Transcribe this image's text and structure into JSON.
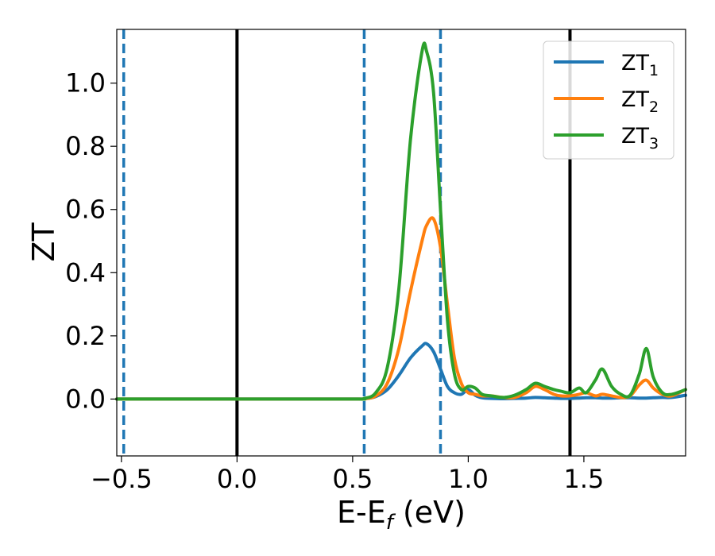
{
  "chart_data": {
    "type": "line",
    "xlabel": "E-E",
    "xlabel_sub": "f",
    "xlabel_unit": " (eV)",
    "ylabel": "ZT",
    "xlim": [
      -0.52,
      1.94
    ],
    "ylim": [
      -0.18,
      1.17
    ],
    "x_ticks": [
      -0.5,
      0.0,
      0.5,
      1.0,
      1.5
    ],
    "x_tick_labels": [
      "−0.5",
      "0.0",
      "0.5",
      "1.0",
      "1.5"
    ],
    "y_ticks": [
      0.0,
      0.2,
      0.4,
      0.6,
      0.8,
      1.0
    ],
    "y_tick_labels": [
      "0.0",
      "0.2",
      "0.4",
      "0.6",
      "0.8",
      "1.0"
    ],
    "grid": false,
    "legend_position": "top-right",
    "vlines": [
      {
        "x": 0.0,
        "style": "solid",
        "color": "#000000"
      },
      {
        "x": 1.44,
        "style": "solid",
        "color": "#000000"
      },
      {
        "x": -0.49,
        "style": "dashed",
        "color": "#1f77b4"
      },
      {
        "x": 0.55,
        "style": "dashed",
        "color": "#1f77b4"
      },
      {
        "x": 0.88,
        "style": "dashed",
        "color": "#1f77b4"
      }
    ],
    "x": [
      -0.52,
      0.0,
      0.5,
      0.55,
      0.6,
      0.65,
      0.7,
      0.75,
      0.8,
      0.82,
      0.85,
      0.88,
      0.91,
      0.94,
      0.97,
      1.0,
      1.03,
      1.06,
      1.1,
      1.15,
      1.2,
      1.25,
      1.29,
      1.33,
      1.37,
      1.4,
      1.44,
      1.48,
      1.51,
      1.55,
      1.58,
      1.62,
      1.66,
      1.7,
      1.74,
      1.77,
      1.8,
      1.84,
      1.88,
      1.94
    ],
    "series": [
      {
        "name": "ZT",
        "name_sub": "1",
        "color": "#1f77b4",
        "values": [
          0.0,
          0.0,
          0.0,
          0.001,
          0.008,
          0.03,
          0.075,
          0.13,
          0.168,
          0.175,
          0.15,
          0.095,
          0.04,
          0.02,
          0.015,
          0.03,
          0.012,
          0.004,
          0.002,
          0.001,
          0.002,
          0.003,
          0.005,
          0.004,
          0.003,
          0.002,
          0.002,
          0.003,
          0.004,
          0.004,
          0.003,
          0.003,
          0.004,
          0.004,
          0.003,
          0.003,
          0.004,
          0.005,
          0.005,
          0.012
        ]
      },
      {
        "name": "ZT",
        "name_sub": "2",
        "color": "#ff7f0e",
        "values": [
          0.0,
          0.0,
          0.0,
          0.001,
          0.01,
          0.05,
          0.16,
          0.34,
          0.5,
          0.55,
          0.57,
          0.48,
          0.3,
          0.13,
          0.05,
          0.02,
          0.015,
          0.01,
          0.01,
          0.005,
          0.005,
          0.02,
          0.04,
          0.03,
          0.015,
          0.01,
          0.01,
          0.015,
          0.02,
          0.01,
          0.015,
          0.01,
          0.005,
          0.01,
          0.045,
          0.06,
          0.035,
          0.015,
          0.01,
          0.03
        ]
      },
      {
        "name": "ZT",
        "name_sub": "3",
        "color": "#2ca02c",
        "values": [
          0.0,
          0.0,
          0.0,
          0.002,
          0.02,
          0.1,
          0.35,
          0.82,
          1.1,
          1.1,
          0.97,
          0.6,
          0.25,
          0.08,
          0.03,
          0.04,
          0.035,
          0.015,
          0.01,
          0.005,
          0.012,
          0.03,
          0.05,
          0.04,
          0.03,
          0.025,
          0.02,
          0.035,
          0.02,
          0.06,
          0.095,
          0.04,
          0.015,
          0.012,
          0.08,
          0.16,
          0.07,
          0.02,
          0.015,
          0.03
        ]
      }
    ]
  }
}
